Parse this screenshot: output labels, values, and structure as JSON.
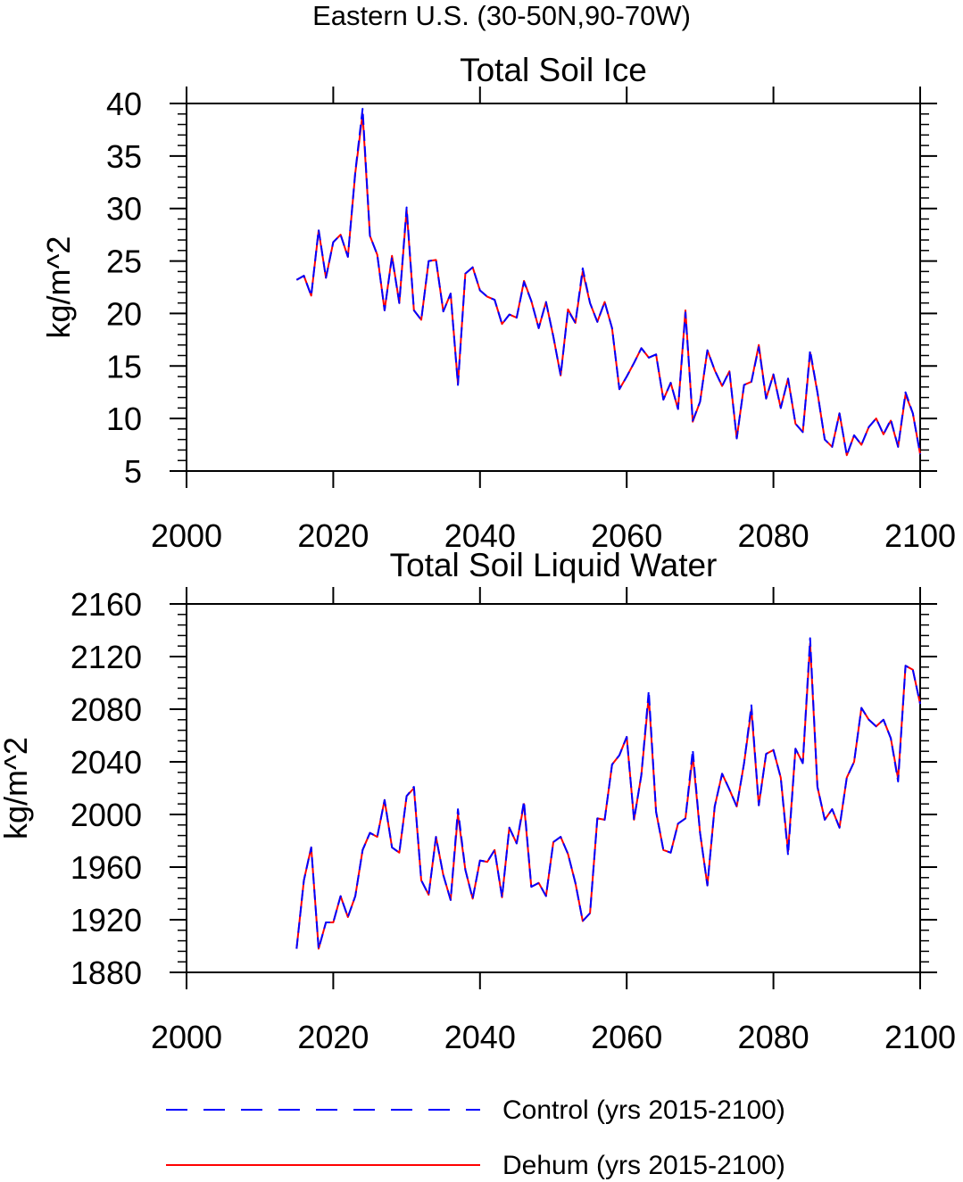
{
  "suptitle": "Eastern U.S. (30-50N,90-70W)",
  "colors": {
    "control": "#0000ff",
    "dehum": "#ff0000",
    "axes": "#000000"
  },
  "legend": {
    "placement": "bottom",
    "items": [
      {
        "label": "Control (yrs 2015-2100)",
        "style": "dashed",
        "color": "#0000ff"
      },
      {
        "label": "Dehum (yrs 2015-2100)",
        "style": "solid",
        "color": "#ff0000"
      }
    ]
  },
  "chart_data": [
    {
      "type": "line",
      "title": "Total Soil Ice",
      "xlabel": "",
      "ylabel": "kg/m^2",
      "xlim": [
        2000,
        2100
      ],
      "ylim": [
        5,
        40
      ],
      "xticks": [
        2000,
        2020,
        2040,
        2060,
        2080,
        2100
      ],
      "yticks": [
        5,
        10,
        15,
        20,
        25,
        30,
        35,
        40
      ],
      "x_start": 2015,
      "series": [
        {
          "name": "Control (yrs 2015-2100)",
          "values": [
            23.2,
            23.6,
            21.7,
            28.0,
            23.4,
            26.8,
            27.5,
            25.4,
            33.5,
            39.5,
            27.4,
            25.6,
            20.3,
            25.4,
            21.0,
            30.1,
            20.3,
            19.4,
            25.0,
            25.1,
            20.2,
            21.9,
            13.2,
            23.8,
            24.4,
            22.2,
            21.6,
            21.3,
            19.0,
            19.9,
            19.6,
            23.0,
            21.2,
            18.6,
            21.1,
            17.8,
            14.1,
            20.3,
            19.1,
            24.3,
            21.0,
            19.2,
            21.1,
            18.6,
            12.8,
            14.0,
            15.3,
            16.7,
            15.8,
            16.1,
            11.8,
            13.4,
            10.9,
            20.1,
            9.8,
            11.6,
            16.5,
            14.6,
            13.1,
            14.5,
            8.1,
            13.2,
            13.5,
            16.8,
            11.9,
            14.2,
            11.0,
            13.8,
            9.5,
            8.7,
            16.5,
            12.5,
            8.0,
            7.3,
            10.5,
            6.5,
            8.4,
            7.5,
            9.2,
            10.0,
            8.5,
            9.9,
            7.3,
            12.5,
            10.5,
            6.6
          ]
        },
        {
          "name": "Dehum (yrs 2015-2100)",
          "values": [
            23.2,
            23.6,
            21.7,
            27.9,
            23.4,
            26.8,
            27.5,
            25.4,
            33.4,
            39.0,
            27.4,
            25.6,
            20.3,
            25.5,
            21.0,
            29.9,
            20.3,
            19.4,
            25.0,
            25.1,
            20.2,
            21.9,
            13.3,
            23.8,
            24.4,
            22.2,
            21.6,
            21.3,
            19.0,
            19.9,
            19.6,
            23.1,
            21.2,
            18.6,
            21.1,
            17.8,
            14.1,
            20.4,
            19.1,
            24.0,
            21.0,
            19.2,
            21.1,
            18.6,
            12.8,
            14.0,
            15.3,
            16.7,
            15.8,
            16.1,
            11.8,
            13.4,
            10.9,
            20.3,
            9.7,
            11.6,
            16.5,
            14.6,
            13.1,
            14.5,
            8.1,
            13.2,
            13.5,
            17.0,
            11.9,
            14.2,
            11.0,
            13.8,
            9.5,
            8.7,
            16.3,
            12.5,
            8.0,
            7.3,
            10.5,
            6.5,
            8.4,
            7.5,
            9.2,
            10.0,
            8.5,
            9.8,
            7.3,
            12.3,
            10.5,
            6.6
          ]
        }
      ]
    },
    {
      "type": "line",
      "title": "Total Soil Liquid Water",
      "xlabel": "",
      "ylabel": "kg/m^2",
      "xlim": [
        2000,
        2100
      ],
      "ylim": [
        1880,
        2160
      ],
      "xticks": [
        2000,
        2020,
        2040,
        2060,
        2080,
        2100
      ],
      "yticks": [
        1880,
        1920,
        1960,
        2000,
        2040,
        2080,
        2120,
        2160
      ],
      "x_start": 2015,
      "series": [
        {
          "name": "Control (yrs 2015-2100)",
          "values": [
            1898,
            1950,
            1975,
            1898,
            1918,
            1918,
            1938,
            1922,
            1938,
            1973,
            1986,
            1983,
            2011,
            1975,
            1971,
            2014,
            2021,
            1950,
            1939,
            1983,
            1954,
            1935,
            2004,
            1958,
            1936,
            1965,
            1964,
            1973,
            1937,
            1990,
            1978,
            2010,
            1945,
            1948,
            1938,
            1979,
            1983,
            1970,
            1948,
            1919,
            1925,
            1997,
            1996,
            2038,
            2045,
            2059,
            1996,
            2030,
            2094,
            2002,
            1973,
            1971,
            1993,
            1997,
            2049,
            1986,
            1946,
            2006,
            2031,
            2019,
            2006,
            2039,
            2083,
            2007,
            2046,
            2049,
            2028,
            1969,
            2050,
            2039,
            2134,
            2021,
            1996,
            2004,
            1990,
            2028,
            2040,
            2081,
            2072,
            2067,
            2072,
            2058,
            2025,
            2113,
            2110,
            2084
          ]
        },
        {
          "name": "Dehum (yrs 2015-2100)",
          "values": [
            1898,
            1950,
            1975,
            1898,
            1918,
            1918,
            1938,
            1922,
            1938,
            1973,
            1986,
            1983,
            2011,
            1975,
            1971,
            2014,
            2020,
            1950,
            1939,
            1983,
            1954,
            1935,
            2000,
            1958,
            1936,
            1965,
            1964,
            1973,
            1937,
            1990,
            1978,
            2008,
            1945,
            1948,
            1938,
            1979,
            1983,
            1970,
            1948,
            1919,
            1925,
            1997,
            1996,
            2038,
            2045,
            2059,
            1996,
            2030,
            2090,
            2002,
            1973,
            1971,
            1993,
            1997,
            2045,
            1986,
            1946,
            2006,
            2031,
            2019,
            2006,
            2039,
            2080,
            2007,
            2046,
            2049,
            2028,
            1972,
            2050,
            2039,
            2130,
            2021,
            1996,
            2004,
            1990,
            2028,
            2040,
            2081,
            2072,
            2067,
            2072,
            2058,
            2027,
            2113,
            2110,
            2084
          ]
        }
      ]
    }
  ]
}
